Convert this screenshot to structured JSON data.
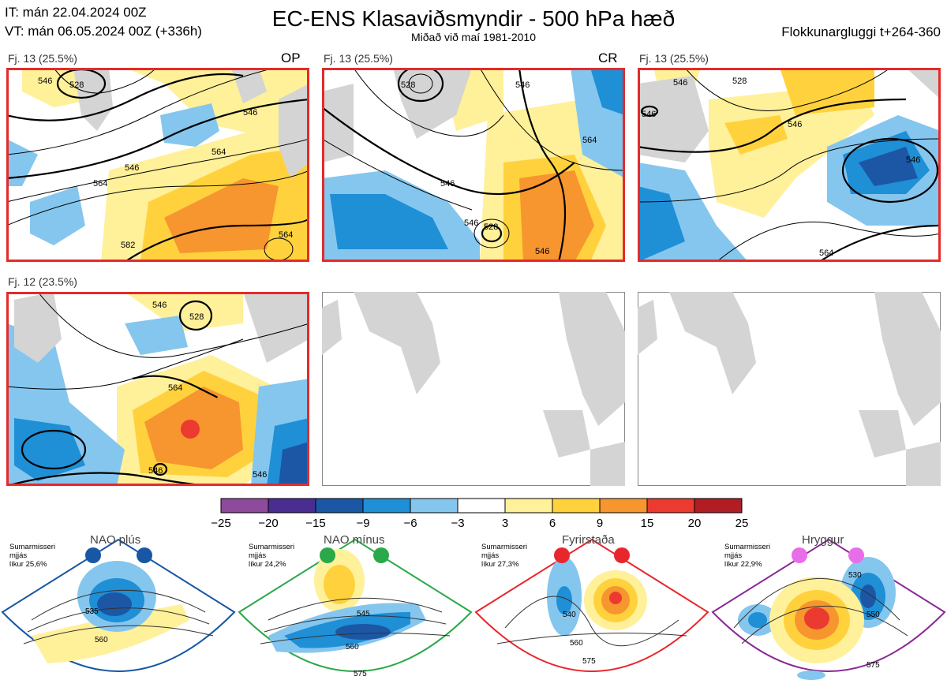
{
  "header": {
    "it_line": "IT: mán 22.04.2024 00Z",
    "vt_line": "VT: mán 06.05.2024 00Z  (+336h)",
    "title": "EC-ENS Klasaviðsmyndir - 500 hPa hæð",
    "subtitle": "Miðað við maí 1981-2010",
    "window": "Flokkunargluggi t+264-360"
  },
  "panels": [
    {
      "label": "Fj. 13 (25.5%)",
      "tag": "OP",
      "contours": [
        "546",
        "564",
        "546",
        "564",
        "564",
        "582",
        "528",
        "546"
      ]
    },
    {
      "label": "Fj. 13 (25.5%)",
      "tag": "CR",
      "contours": [
        "546",
        "528",
        "546",
        "546",
        "528",
        "546",
        "564"
      ]
    },
    {
      "label": "Fj. 13 (25.5%)",
      "tag": "",
      "contours": [
        "546",
        "528",
        "546",
        "546",
        "564",
        "546"
      ]
    },
    {
      "label": "Fj. 12 (23.5%)",
      "tag": "",
      "contours": [
        "546",
        "528",
        "564",
        "546",
        "546"
      ]
    }
  ],
  "chart_data": {
    "type": "heatmap",
    "title": "EC-ENS Klasaviðsmyndir - 500 hPa hæð",
    "xlabel": "",
    "ylabel": "",
    "colorbar": {
      "boundaries": [
        "−25",
        "−20",
        "−15",
        "−9",
        "−6",
        "−3",
        "3",
        "6",
        "9",
        "15",
        "20",
        "25"
      ],
      "colors": [
        "#8e4a9b",
        "#4a2d91",
        "#1c57a6",
        "#1f8fd6",
        "#85c6ee",
        "#ffffff",
        "#fff09a",
        "#ffd23d",
        "#f7952f",
        "#eb3a2f",
        "#b01e23"
      ]
    },
    "clusters": [
      {
        "name": "Fj. 13",
        "members": 13,
        "percent": 25.5,
        "tag": "OP"
      },
      {
        "name": "Fj. 13",
        "members": 13,
        "percent": 25.5,
        "tag": "CR"
      },
      {
        "name": "Fj. 13",
        "members": 13,
        "percent": 25.5,
        "tag": ""
      },
      {
        "name": "Fj. 12",
        "members": 12,
        "percent": 23.5,
        "tag": ""
      }
    ]
  },
  "regimes": [
    {
      "name": "NAO plús",
      "season": "Sumarmisseri",
      "smooth": "mjjás",
      "prob": "líkur 25,6%",
      "color": "#1757a5",
      "contours": [
        "535",
        "560"
      ]
    },
    {
      "name": "NAO mínus",
      "season": "Sumarmisseri",
      "smooth": "mjjás",
      "prob": "líkur 24,2%",
      "color": "#2aa84a",
      "contours": [
        "545",
        "560",
        "575"
      ]
    },
    {
      "name": "Fyrirstaða",
      "season": "Sumarmisseri",
      "smooth": "mjjás",
      "prob": "líkur 27,3%",
      "color": "#e8262d",
      "contours": [
        "540",
        "560",
        "575"
      ]
    },
    {
      "name": "Hryggur",
      "season": "Sumarmisseri",
      "smooth": "mjjás",
      "prob": "líkur 22,9%",
      "color": "#e86de8",
      "contours": [
        "530",
        "550",
        "575"
      ]
    }
  ]
}
